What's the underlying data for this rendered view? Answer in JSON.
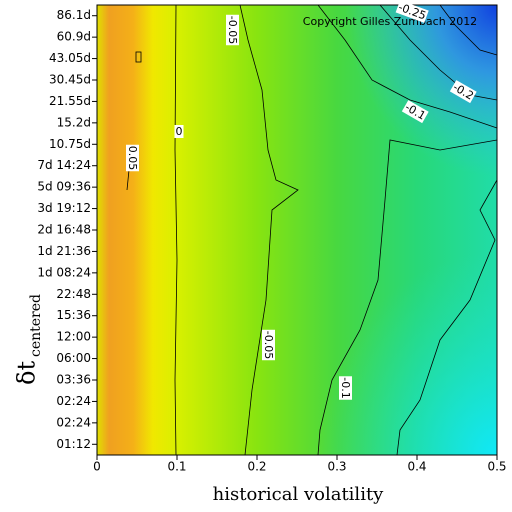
{
  "chart_data": {
    "type": "contour",
    "xlabel": "historical volatility",
    "ylabel": "δt",
    "ylabel_subscript": "centered",
    "annotation": "Copyright Gilles Zumbach 2012",
    "xlim": [
      0,
      0.5
    ],
    "xticks": [
      0,
      0.1,
      0.2,
      0.3,
      0.4,
      0.5
    ],
    "y_categories": [
      "01:12",
      "02:24",
      "02:24",
      "03:36",
      "06:00",
      "12:00",
      "15:36",
      "22:48",
      "1d 08:24",
      "1d 21:36",
      "2d 16:48",
      "3d 19:12",
      "5d 09:36",
      "7d 14:24",
      "10.75d",
      "15.2d",
      "21.55d",
      "30.45d",
      "43.05d",
      "60.9d",
      "86.1d"
    ],
    "contour_labels": [
      -0.05,
      0,
      0.05,
      -0.05,
      -0.1,
      -0.1,
      -0.2,
      -0.25
    ]
  }
}
